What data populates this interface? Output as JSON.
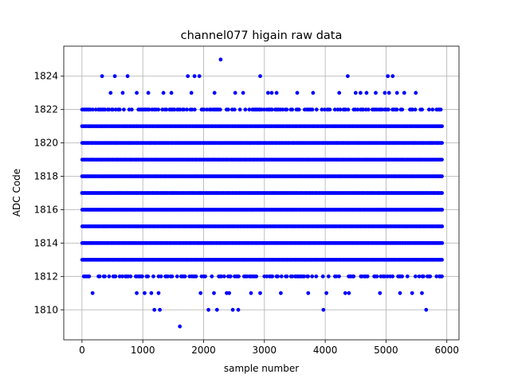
{
  "chart_data": {
    "type": "scatter",
    "title": "channel077 higain raw data",
    "xlabel": "sample number",
    "ylabel": "ADC Code",
    "xlim": [
      -300,
      6200
    ],
    "ylim": [
      1808.2,
      1825.8
    ],
    "xticks": [
      0,
      1000,
      2000,
      3000,
      4000,
      5000,
      6000
    ],
    "yticks": [
      1810,
      1812,
      1814,
      1816,
      1818,
      1820,
      1822,
      1824
    ],
    "grid": true,
    "marker_color": "#0000ff",
    "series": [
      {
        "x_range": [
          0,
          5920
        ],
        "dense_levels": [
          1813,
          1814,
          1815,
          1816,
          1817,
          1818,
          1819,
          1820,
          1821
        ],
        "semi_dense_levels": [
          1812,
          1822
        ],
        "points": [
          {
            "x": 175,
            "y": 1811
          },
          {
            "x": 900,
            "y": 1811
          },
          {
            "x": 1030,
            "y": 1811
          },
          {
            "x": 1140,
            "y": 1811
          },
          {
            "x": 1260,
            "y": 1811
          },
          {
            "x": 1950,
            "y": 1811
          },
          {
            "x": 2170,
            "y": 1811
          },
          {
            "x": 2380,
            "y": 1811
          },
          {
            "x": 2420,
            "y": 1811
          },
          {
            "x": 2780,
            "y": 1811
          },
          {
            "x": 2930,
            "y": 1811
          },
          {
            "x": 3270,
            "y": 1811
          },
          {
            "x": 3720,
            "y": 1811
          },
          {
            "x": 4020,
            "y": 1811
          },
          {
            "x": 4330,
            "y": 1811
          },
          {
            "x": 4390,
            "y": 1811
          },
          {
            "x": 4900,
            "y": 1811
          },
          {
            "x": 5230,
            "y": 1811
          },
          {
            "x": 5430,
            "y": 1811
          },
          {
            "x": 5590,
            "y": 1811
          },
          {
            "x": 1190,
            "y": 1810
          },
          {
            "x": 1280,
            "y": 1810
          },
          {
            "x": 2080,
            "y": 1810
          },
          {
            "x": 2220,
            "y": 1810
          },
          {
            "x": 2480,
            "y": 1810
          },
          {
            "x": 2570,
            "y": 1810
          },
          {
            "x": 3970,
            "y": 1810
          },
          {
            "x": 5660,
            "y": 1810
          },
          {
            "x": 1610,
            "y": 1809
          },
          {
            "x": 330,
            "y": 1824
          },
          {
            "x": 540,
            "y": 1824
          },
          {
            "x": 750,
            "y": 1824
          },
          {
            "x": 1740,
            "y": 1824
          },
          {
            "x": 1850,
            "y": 1824
          },
          {
            "x": 1930,
            "y": 1824
          },
          {
            "x": 2930,
            "y": 1824
          },
          {
            "x": 4370,
            "y": 1824
          },
          {
            "x": 5030,
            "y": 1824
          },
          {
            "x": 5110,
            "y": 1824
          },
          {
            "x": 2280,
            "y": 1825
          },
          {
            "x": 470,
            "y": 1823
          },
          {
            "x": 670,
            "y": 1823
          },
          {
            "x": 900,
            "y": 1823
          },
          {
            "x": 1090,
            "y": 1823
          },
          {
            "x": 1340,
            "y": 1823
          },
          {
            "x": 1470,
            "y": 1823
          },
          {
            "x": 1800,
            "y": 1823
          },
          {
            "x": 2180,
            "y": 1823
          },
          {
            "x": 2520,
            "y": 1823
          },
          {
            "x": 2650,
            "y": 1823
          },
          {
            "x": 3060,
            "y": 1823
          },
          {
            "x": 3120,
            "y": 1823
          },
          {
            "x": 3200,
            "y": 1823
          },
          {
            "x": 3540,
            "y": 1823
          },
          {
            "x": 3800,
            "y": 1823
          },
          {
            "x": 4230,
            "y": 1823
          },
          {
            "x": 4500,
            "y": 1823
          },
          {
            "x": 4580,
            "y": 1823
          },
          {
            "x": 4680,
            "y": 1823
          },
          {
            "x": 4830,
            "y": 1823
          },
          {
            "x": 4980,
            "y": 1823
          },
          {
            "x": 5050,
            "y": 1823
          },
          {
            "x": 5180,
            "y": 1823
          },
          {
            "x": 5300,
            "y": 1823
          },
          {
            "x": 5490,
            "y": 1823
          }
        ]
      }
    ]
  }
}
